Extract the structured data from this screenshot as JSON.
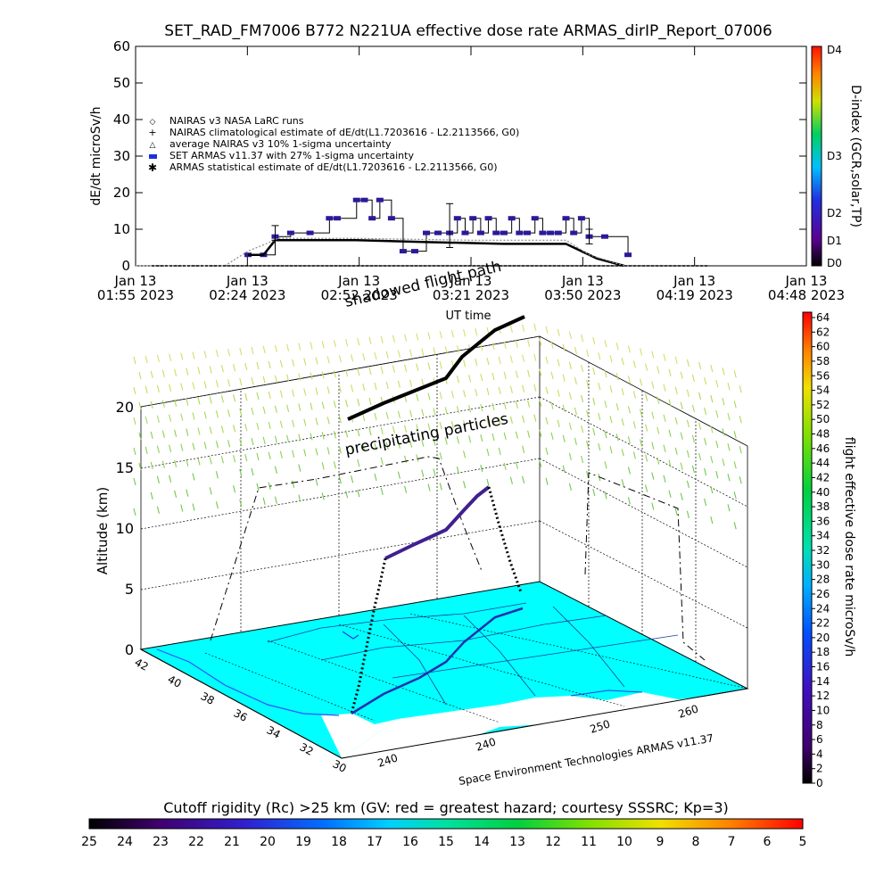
{
  "top": {
    "title": "SET_RAD_FM7006   B772 N221UA effective dose rate ARMAS_dirIP_Report_07006",
    "ylabel": "dE/dt microSv/h",
    "xlabel": "UT time",
    "right_label": "D-index (GCR,solar,TP)",
    "dindex_ticks": [
      "D4",
      "D3",
      "D2",
      "D1",
      "D0"
    ],
    "yticks": [
      "60",
      "50",
      "40",
      "30",
      "20",
      "10",
      "0"
    ],
    "xticks": [
      {
        "top": "Jan 13",
        "bottom": "01:55 2023"
      },
      {
        "top": "Jan 13",
        "bottom": "02:24 2023"
      },
      {
        "top": "Jan 13",
        "bottom": "02:52 2023"
      },
      {
        "top": "Jan 13",
        "bottom": "03:21 2023"
      },
      {
        "top": "Jan 13",
        "bottom": "03:50 2023"
      },
      {
        "top": "Jan 13",
        "bottom": "04:19 2023"
      },
      {
        "top": "Jan 13",
        "bottom": "04:48 2023"
      }
    ],
    "legend": [
      {
        "symbol": "diamond",
        "label": "NAIRAS v3 NASA LaRC runs"
      },
      {
        "symbol": "plus",
        "label": "NAIRAS climatological estimate of dE/dt(L1.7203616 - L2.2113566, G0)"
      },
      {
        "symbol": "triangle",
        "label": "average NAIRAS v3 10% 1-sigma uncertainty"
      },
      {
        "symbol": "blue-square",
        "label": "SET ARMAS v11.37 with 27% 1-sigma uncertainty"
      },
      {
        "symbol": "asterisk",
        "label": "ARMAS statistical estimate of dE/dt(L1.7203616 - L2.2113566, G0)"
      }
    ]
  },
  "chart_data": [
    {
      "type": "line",
      "title": "SET_RAD_FM7006   B772 N221UA effective dose rate ARMAS_dirIP_Report_07006",
      "xlabel": "UT time",
      "ylabel": "dE/dt microSv/h",
      "ylim": [
        0,
        60
      ],
      "xlim": [
        "01:55",
        "04:48"
      ],
      "series": [
        {
          "name": "SET ARMAS v11.37 with 27% 1-sigma uncertainty",
          "x": [
            "02:24",
            "02:28",
            "02:31",
            "02:35",
            "02:40",
            "02:45",
            "02:47",
            "02:52",
            "02:54",
            "02:56",
            "02:58",
            "03:01",
            "03:04",
            "03:07",
            "03:10",
            "03:13",
            "03:16",
            "03:18",
            "03:20",
            "03:22",
            "03:24",
            "03:26",
            "03:28",
            "03:30",
            "03:32",
            "03:34",
            "03:36",
            "03:38",
            "03:40",
            "03:42",
            "03:44",
            "03:46",
            "03:48",
            "03:50",
            "03:52",
            "03:56",
            "04:02"
          ],
          "values": [
            3,
            3,
            8,
            9,
            9,
            13,
            13,
            18,
            18,
            13,
            18,
            13,
            4,
            4,
            9,
            9,
            9,
            13,
            9,
            13,
            9,
            13,
            9,
            9,
            13,
            9,
            9,
            13,
            9,
            9,
            9,
            13,
            9,
            13,
            8,
            8,
            3
          ]
        },
        {
          "name": "ARMAS statistical estimate of dE/dt(L1.7203616 - L2.2113566, G0)",
          "x": [
            "02:24",
            "02:28",
            "02:31",
            "02:38",
            "02:52",
            "03:10",
            "03:30",
            "03:46",
            "03:50",
            "03:54",
            "04:01"
          ],
          "values": [
            3,
            3,
            7,
            7,
            7,
            6.5,
            6,
            6,
            4,
            2,
            0
          ]
        },
        {
          "name": "NAIRAS v3 NASA LaRC runs",
          "x": [
            "01:55",
            "02:18",
            "02:24",
            "02:32",
            "02:52",
            "03:21",
            "03:46",
            "03:52",
            "04:01"
          ],
          "values": [
            0,
            0,
            4,
            7.5,
            7.5,
            7,
            7,
            3,
            0
          ]
        },
        {
          "name": "NAIRAS climatological estimate of dE/dt(L1.7203616 - L2.2113566, G0)",
          "x": [
            "01:55",
            "04:30"
          ],
          "values": [
            0,
            0
          ]
        }
      ],
      "error_bars": [
        {
          "x": "02:31",
          "low": 7,
          "high": 11
        },
        {
          "x": "03:16",
          "low": 5,
          "high": 17
        },
        {
          "x": "03:52",
          "low": 6,
          "high": 10
        }
      ],
      "grid": false,
      "legend_position": "left"
    },
    {
      "type": "scatter",
      "subtype": "3d-flight-path",
      "zlabel": "Altitude (km)",
      "zlim": [
        0,
        20
      ],
      "zticks": [
        "0",
        "5",
        "10",
        "15",
        "20"
      ],
      "lat_ticks": [
        "42",
        "40",
        "38",
        "36",
        "34",
        "32",
        "30"
      ],
      "lon_ticks": [
        "240",
        "240",
        "250",
        "260"
      ],
      "annotations": [
        "shadowed flight path",
        "precipitating particles"
      ],
      "credit": "Space Environment Technologies ARMAS v11.37",
      "colorbar_label": "flight effective dose rate microSv/h",
      "colorbar_ticks": [
        "64",
        "62",
        "60",
        "58",
        "56",
        "54",
        "52",
        "50",
        "48",
        "46",
        "44",
        "42",
        "40",
        "38",
        "36",
        "34",
        "32",
        "30",
        "28",
        "26",
        "24",
        "22",
        "20",
        "18",
        "16",
        "14",
        "12",
        "10",
        "8",
        "6",
        "4",
        "2",
        "0"
      ]
    },
    {
      "type": "heatmap",
      "title": "Cutoff rigidity (Rc) >25 km (GV: red = greatest hazard; courtesy SSSRC; Kp=3)",
      "ticks": [
        "25",
        "24",
        "23",
        "22",
        "21",
        "20",
        "19",
        "18",
        "17",
        "16",
        "15",
        "14",
        "13",
        "12",
        "11",
        "10",
        "9",
        "8",
        "7",
        "6",
        "5"
      ]
    }
  ],
  "colors": {
    "armas": "#2a1a9a",
    "ocean": "#00ffff",
    "land": "#2fd3e8"
  }
}
